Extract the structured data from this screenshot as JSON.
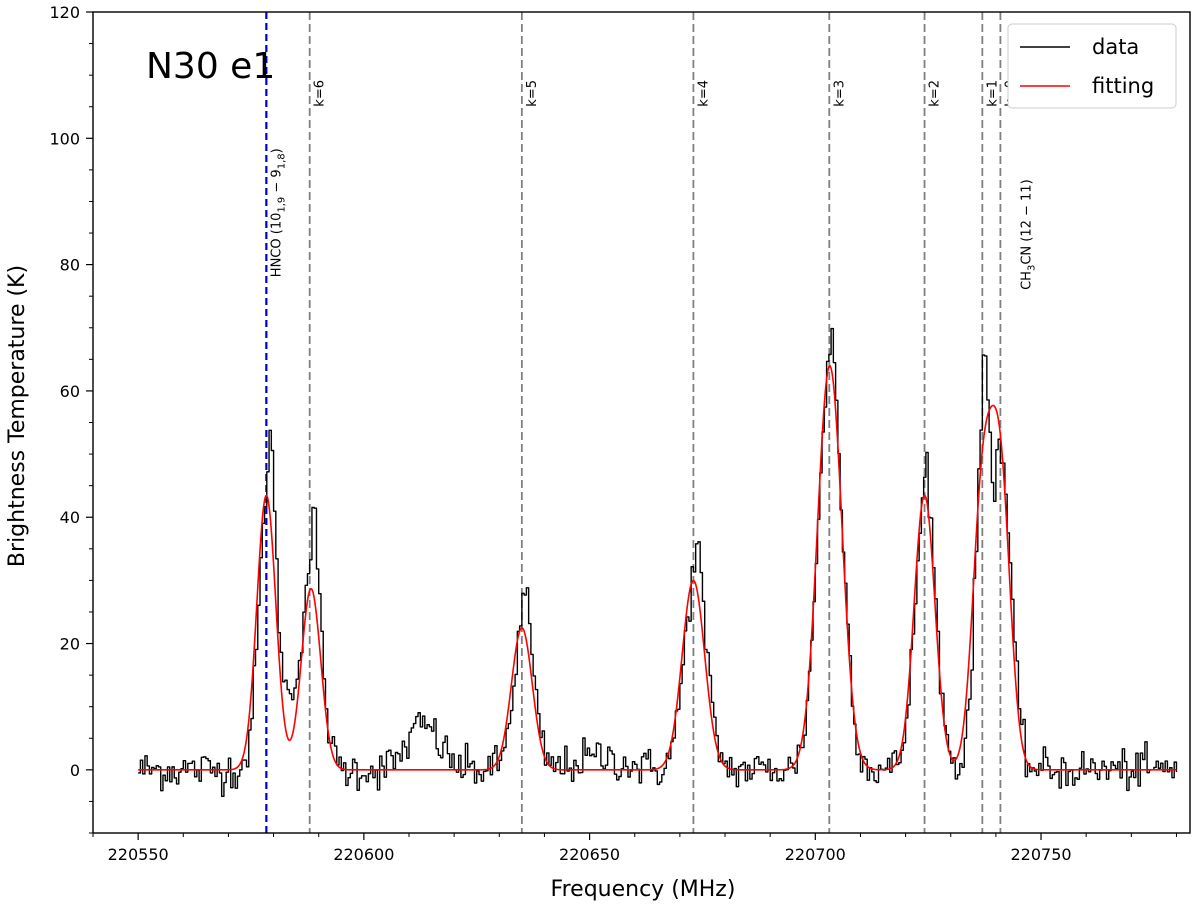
{
  "chart_data": {
    "type": "line",
    "panel_label": "N30 e1",
    "xlabel": "Frequency (MHz)",
    "ylabel": "Brightness Temperature (K)",
    "xlim": [
      220540,
      220783
    ],
    "ylim": [
      -10,
      120
    ],
    "xticks": [
      220550,
      220600,
      220650,
      220700,
      220750
    ],
    "xtick_labels": [
      "220550",
      "220600",
      "220650",
      "220700",
      "220750"
    ],
    "yticks": [
      0,
      20,
      40,
      60,
      80,
      100,
      120
    ],
    "ytick_labels": [
      "0",
      "20",
      "40",
      "60",
      "80",
      "100",
      "120"
    ],
    "grid": false,
    "legend_position": "top-right",
    "legend": [
      {
        "label": "data",
        "color": "#000000"
      },
      {
        "label": "fitting",
        "color": "#ff0000"
      }
    ],
    "vertical_lines": [
      {
        "x": 220578.4,
        "color": "#0000cc",
        "style": "dashed",
        "label": "HNCO (10",
        "sub1": "1,9",
        "mid": " − 9",
        "sub2": "1,8",
        "tail": ")",
        "label_y": 78
      },
      {
        "x": 220588.0,
        "color": "#808080",
        "style": "dashed",
        "label": "k=6",
        "label_y": 105
      },
      {
        "x": 220635.0,
        "color": "#808080",
        "style": "dashed",
        "label": "k=5",
        "label_y": 105
      },
      {
        "x": 220673.0,
        "color": "#808080",
        "style": "dashed",
        "label": "k=4",
        "label_y": 105
      },
      {
        "x": 220703.1,
        "color": "#808080",
        "style": "dashed",
        "label": "k=3",
        "label_y": 105
      },
      {
        "x": 220724.2,
        "color": "#808080",
        "style": "dashed",
        "label": "k=2",
        "label_y": 105
      },
      {
        "x": 220737.0,
        "color": "#808080",
        "style": "dashed",
        "label": "k=1",
        "label_y": 105
      },
      {
        "x": 220741.0,
        "color": "#808080",
        "style": "dashed",
        "label": "k=0",
        "label_y": 105
      },
      {
        "x": 220741.0,
        "color": "none",
        "style": "none",
        "label": "CH",
        "sub1": "3",
        "mid": "CN (12 − 11)",
        "label_y": 76,
        "label_dx": 16
      }
    ],
    "series": [
      {
        "name": "data",
        "color": "#000000",
        "kind": "step",
        "x_start": 220550,
        "x_step": 0.5,
        "noise_sigma": 1.6,
        "components": [
          {
            "center": 220578.6,
            "amp": 44,
            "sigma": 2.0
          },
          {
            "center": 220579.2,
            "amp": 10,
            "sigma": 0.6
          },
          {
            "center": 220585.0,
            "amp": 10,
            "sigma": 2.5
          },
          {
            "center": 220588.6,
            "amp": 29,
            "sigma": 2.0
          },
          {
            "center": 220588.9,
            "amp": 8,
            "sigma": 0.6
          },
          {
            "center": 220613.0,
            "amp": 7,
            "sigma": 3.5
          },
          {
            "center": 220635.2,
            "amp": 23,
            "sigma": 2.2
          },
          {
            "center": 220635.8,
            "amp": 6,
            "sigma": 0.7
          },
          {
            "center": 220652.0,
            "amp": 2,
            "sigma": 5.0
          },
          {
            "center": 220673.2,
            "amp": 30,
            "sigma": 2.5
          },
          {
            "center": 220673.8,
            "amp": 6,
            "sigma": 0.8
          },
          {
            "center": 220703.1,
            "amp": 64,
            "sigma": 2.7
          },
          {
            "center": 220703.6,
            "amp": 5,
            "sigma": 0.6
          },
          {
            "center": 220724.2,
            "amp": 43,
            "sigma": 2.3
          },
          {
            "center": 220724.6,
            "amp": 7,
            "sigma": 0.5
          },
          {
            "center": 220736.8,
            "amp": 42,
            "sigma": 1.8
          },
          {
            "center": 220737.2,
            "amp": 14,
            "sigma": 0.7
          },
          {
            "center": 220741.0,
            "amp": 48,
            "sigma": 2.2
          },
          {
            "center": 220739.3,
            "amp": -6,
            "sigma": 0.5
          }
        ],
        "x_end": 220780
      },
      {
        "name": "fitting",
        "color": "#ff0000",
        "kind": "smooth",
        "x_start": 220550,
        "x_end": 220780,
        "x_step": 0.25,
        "components": [
          {
            "center": 220578.4,
            "amp": 43.5,
            "sigma": 2.1
          },
          {
            "center": 220588.3,
            "amp": 28.7,
            "sigma": 2.15
          },
          {
            "center": 220635.0,
            "amp": 22.5,
            "sigma": 2.3
          },
          {
            "center": 220673.0,
            "amp": 30.0,
            "sigma": 2.5
          },
          {
            "center": 220703.2,
            "amp": 64.0,
            "sigma": 2.7
          },
          {
            "center": 220724.2,
            "amp": 43.5,
            "sigma": 2.3
          },
          {
            "center": 220737.0,
            "amp": 42.0,
            "sigma": 2.2
          },
          {
            "center": 220741.0,
            "amp": 45.0,
            "sigma": 2.2
          }
        ]
      }
    ]
  }
}
